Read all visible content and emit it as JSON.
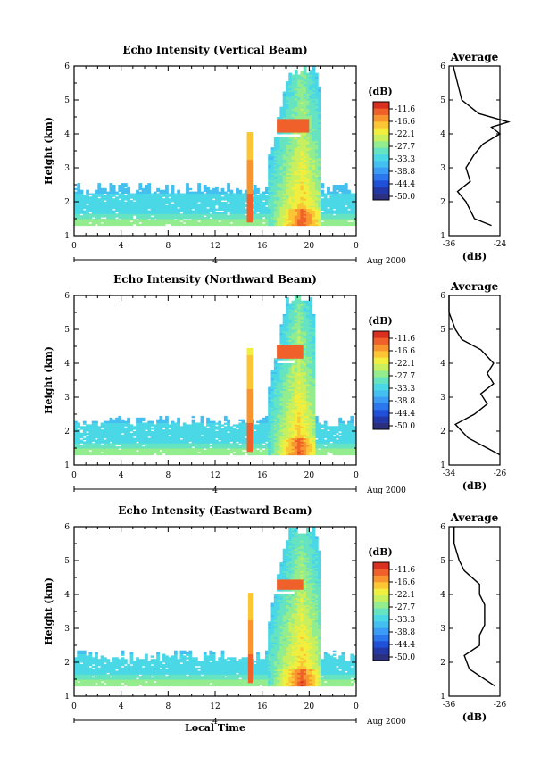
{
  "colors": {
    "colorbar_bottom_to_top": [
      "#2b2f7e",
      "#2338a8",
      "#2150d8",
      "#2c76ee",
      "#3a9cf4",
      "#44c0f0",
      "#4ad8e6",
      "#66e3c0",
      "#93ec8e",
      "#c8f05e",
      "#f1ee3e",
      "#fbc534",
      "#f8952e",
      "#f0602a",
      "#d93020"
    ]
  },
  "xaxis": {
    "ticks": [
      "0",
      "4",
      "8",
      "12",
      "16",
      "20",
      "0"
    ],
    "date_mark": "4",
    "date_label": "Aug 2000",
    "label": "Local Time"
  },
  "colorbar": {
    "unit": "(dB)",
    "ticks": [
      "-11.6",
      "-16.6",
      "-22.1",
      "-27.7",
      "-33.3",
      "-38.8",
      "-44.4",
      "-50.0"
    ]
  },
  "panels": [
    {
      "title": "Echo Intensity (Vertical Beam)",
      "ylabel": "Height (km)",
      "yticks": [
        "1",
        "2",
        "3",
        "4",
        "5",
        "6"
      ],
      "avg_title": "Average",
      "avg_xticks": [
        "-36",
        "-24"
      ],
      "avg_xlabel": "(dB)",
      "date_label": "Aug 2000"
    },
    {
      "title": "Echo Intensity (Northward Beam)",
      "ylabel": "Height (km)",
      "yticks": [
        "1",
        "2",
        "3",
        "4",
        "5",
        "6"
      ],
      "avg_title": "Average",
      "avg_xticks": [
        "-34",
        "-26"
      ],
      "avg_xlabel": "(dB)",
      "date_label": "Aug 2000"
    },
    {
      "title": "Echo Intensity (Eastward Beam)",
      "ylabel": "Height (km)",
      "yticks": [
        "1",
        "2",
        "3",
        "4",
        "5",
        "6"
      ],
      "avg_title": "Average",
      "avg_xticks": [
        "-36",
        "-26"
      ],
      "avg_xlabel": "(dB)",
      "date_label": "Aug 2000"
    }
  ],
  "chart_data": [
    {
      "type": "heatmap",
      "title": "Echo Intensity (Vertical Beam)",
      "xlabel": "",
      "ylabel": "Height (km)",
      "xlim": [
        0,
        24
      ],
      "ylim": [
        1,
        6
      ],
      "xticks": [
        0,
        4,
        8,
        12,
        16,
        20,
        24
      ],
      "colorbar_unit": "dB",
      "colorbar_levels": [
        -50.0,
        -44.4,
        -38.8,
        -33.3,
        -27.7,
        -22.1,
        -16.6,
        -11.6
      ],
      "features": [
        {
          "name": "low echo layer",
          "x": [
            0,
            24
          ],
          "y": [
            1.3,
            2.4
          ],
          "value_db": -33
        },
        {
          "name": "rain streak",
          "x": [
            14.7,
            15.2
          ],
          "y": [
            1.4,
            4.0
          ],
          "value_db": -16
        },
        {
          "name": "rain event",
          "x": [
            16.5,
            21.0
          ],
          "y": [
            1.3,
            6.0
          ],
          "value_db": -20
        },
        {
          "name": "bright band",
          "x": [
            16.8,
            20.0
          ],
          "y": [
            4.0,
            4.4
          ],
          "value_db": -14
        }
      ],
      "average_profile": {
        "xlabel": "(dB)",
        "xlim": [
          -36,
          -24
        ],
        "height": [
          1.3,
          1.5,
          2.0,
          2.3,
          2.6,
          3.0,
          3.4,
          3.7,
          4.0,
          4.2,
          4.35,
          4.6,
          5.0,
          5.5,
          6.0
        ],
        "value": [
          -26,
          -30,
          -32,
          -34,
          -31,
          -32,
          -30,
          -28,
          -24,
          -26,
          -22,
          -29,
          -33,
          -34,
          -35
        ]
      }
    },
    {
      "type": "heatmap",
      "title": "Echo Intensity (Northward Beam)",
      "xlabel": "",
      "ylabel": "Height (km)",
      "xlim": [
        0,
        24
      ],
      "ylim": [
        1,
        6
      ],
      "xticks": [
        0,
        4,
        8,
        12,
        16,
        20,
        24
      ],
      "colorbar_unit": "dB",
      "colorbar_levels": [
        -50.0,
        -44.4,
        -38.8,
        -33.3,
        -27.7,
        -22.1,
        -16.6,
        -11.6
      ],
      "features": [
        {
          "name": "low echo layer",
          "x": [
            0,
            24
          ],
          "y": [
            1.3,
            2.3
          ],
          "value_db": -33
        },
        {
          "name": "rain streak",
          "x": [
            14.7,
            15.2
          ],
          "y": [
            1.4,
            4.4
          ],
          "value_db": -16
        },
        {
          "name": "rain event",
          "x": [
            16.5,
            20.5
          ],
          "y": [
            1.3,
            6.0
          ],
          "value_db": -20
        },
        {
          "name": "bright band",
          "x": [
            17.0,
            19.5
          ],
          "y": [
            4.1,
            4.5
          ],
          "value_db": -14
        }
      ],
      "average_profile": {
        "xlabel": "(dB)",
        "xlim": [
          -34,
          -26
        ],
        "height": [
          1.3,
          1.5,
          1.8,
          2.2,
          2.5,
          2.8,
          3.1,
          3.4,
          3.7,
          4.0,
          4.4,
          4.7,
          5.0,
          5.5,
          6.0
        ],
        "value": [
          -26,
          -28,
          -31,
          -33,
          -30,
          -28,
          -29,
          -27,
          -28,
          -27,
          -29,
          -32,
          -33,
          -34,
          -34
        ]
      }
    },
    {
      "type": "heatmap",
      "title": "Echo Intensity (Eastward Beam)",
      "xlabel": "Local Time",
      "ylabel": "Height (km)",
      "xlim": [
        0,
        24
      ],
      "ylim": [
        1,
        6
      ],
      "xticks": [
        0,
        4,
        8,
        12,
        16,
        20,
        24
      ],
      "colorbar_unit": "dB",
      "colorbar_levels": [
        -50.0,
        -44.4,
        -38.8,
        -33.3,
        -27.7,
        -22.1,
        -16.6,
        -11.6
      ],
      "features": [
        {
          "name": "low echo layer",
          "x": [
            0,
            24
          ],
          "y": [
            1.3,
            2.2
          ],
          "value_db": -33
        },
        {
          "name": "rain streak",
          "x": [
            14.8,
            15.2
          ],
          "y": [
            1.4,
            4.0
          ],
          "value_db": -16
        },
        {
          "name": "rain event",
          "x": [
            16.5,
            21.0
          ],
          "y": [
            1.3,
            6.0
          ],
          "value_db": -20
        },
        {
          "name": "bright band",
          "x": [
            17.0,
            19.5
          ],
          "y": [
            4.1,
            4.4
          ],
          "value_db": -14
        }
      ],
      "average_profile": {
        "xlabel": "(dB)",
        "xlim": [
          -36,
          -26
        ],
        "height": [
          1.3,
          1.5,
          1.8,
          2.2,
          2.5,
          2.8,
          3.1,
          3.4,
          3.7,
          4.0,
          4.3,
          4.7,
          5.0,
          5.5,
          6.0
        ],
        "value": [
          -27,
          -29,
          -32,
          -33,
          -30,
          -30,
          -29,
          -29,
          -29,
          -30,
          -30,
          -33,
          -34,
          -35,
          -35
        ]
      }
    }
  ]
}
